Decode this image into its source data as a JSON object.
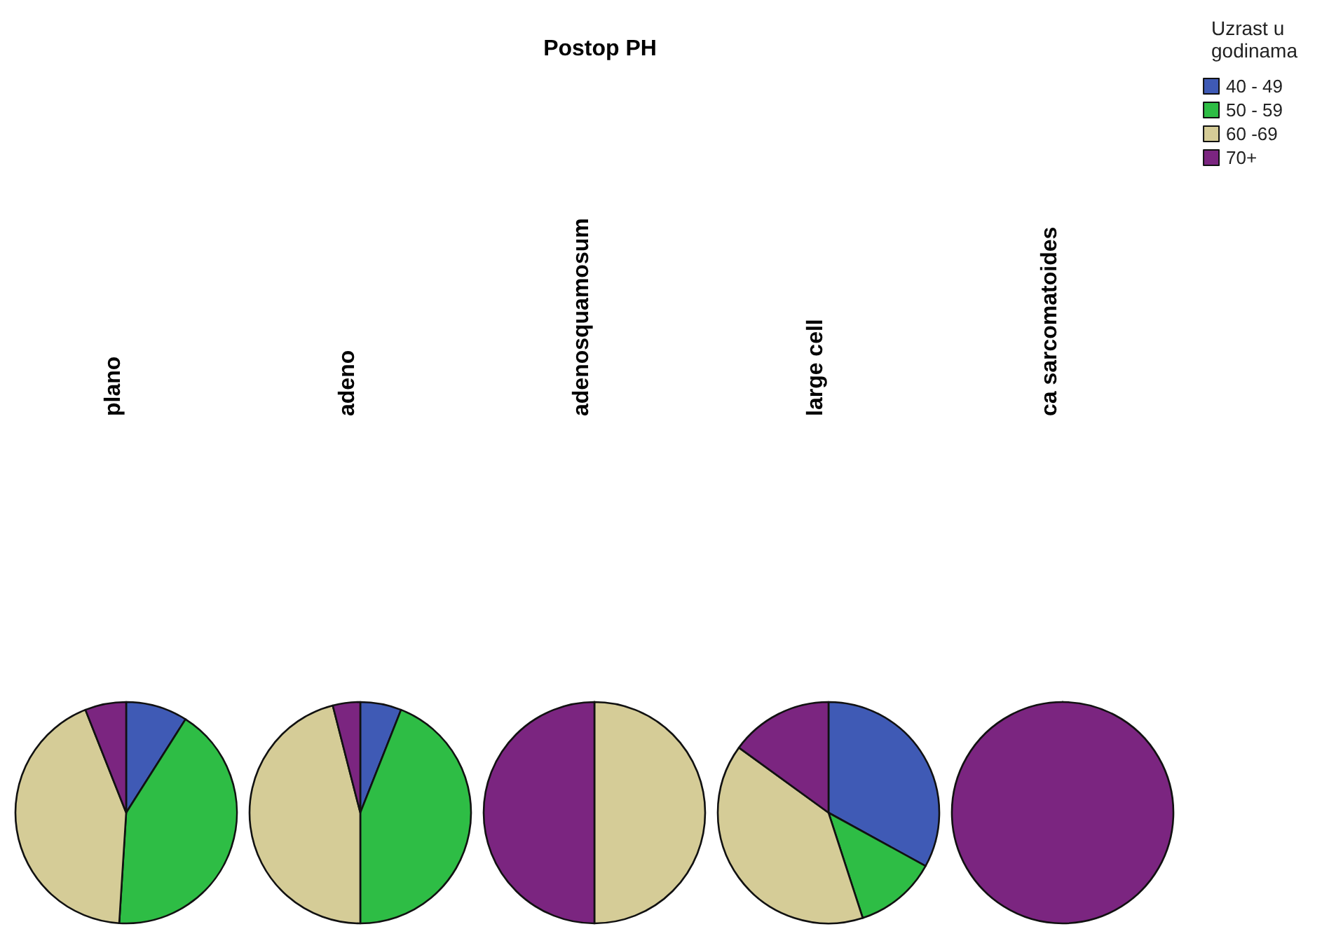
{
  "chart_data": {
    "type": "pie",
    "title": "Postop PH",
    "legend_title": "Uzrast u godinama",
    "legend": "top right",
    "categories": [
      "40 - 49",
      "50 - 59",
      "60 -69",
      "70+"
    ],
    "colors": [
      "#3f5ab5",
      "#2ebd45",
      "#d5cc97",
      "#7b2580"
    ],
    "series": [
      {
        "name": "plano",
        "values": [
          9,
          42,
          43,
          6
        ]
      },
      {
        "name": "adeno",
        "values": [
          6,
          44,
          46,
          4
        ]
      },
      {
        "name": "adenosquamosum",
        "values": [
          0,
          0,
          50,
          50
        ]
      },
      {
        "name": "large cell",
        "values": [
          33,
          12,
          40,
          15
        ]
      },
      {
        "name": "ca sarcomatoides",
        "values": [
          0,
          0,
          0,
          100
        ]
      }
    ]
  }
}
